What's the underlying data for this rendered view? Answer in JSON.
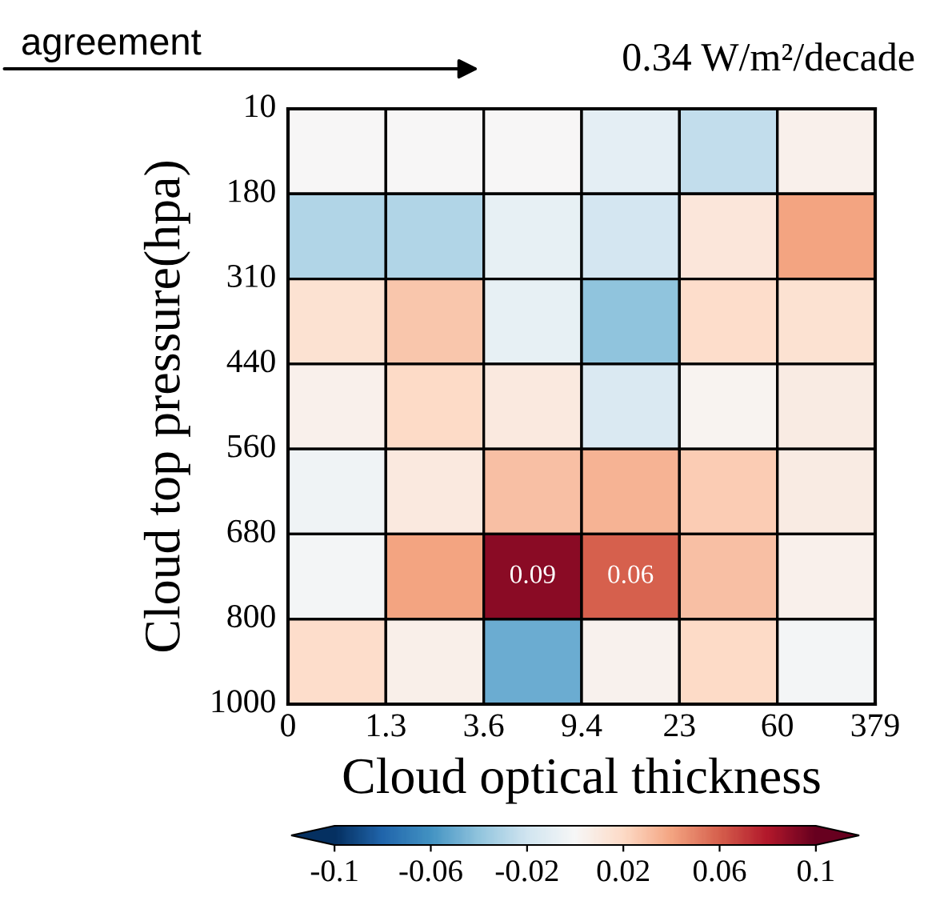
{
  "chart_data": {
    "type": "heatmap",
    "xlabel": "Cloud optical thickness",
    "ylabel": "Cloud top pressure(hpa)",
    "annotations": [
      "agreement",
      "0.34 W/m²/decade",
      "0",
      "1.3",
      "3.6",
      "9.4",
      "23",
      "60",
      "379",
      "10",
      "180",
      "310",
      "440",
      "560",
      "680",
      "800",
      "1000"
    ],
    "categories": [
      null,
      null,
      null,
      null,
      null,
      null
    ],
    "y_categories": [
      null,
      null,
      null,
      null,
      null,
      null,
      null
    ],
    "cells": [
      [
        0,
        0,
        0,
        -0.01,
        -0.025,
        0.005
      ],
      [
        -0.03,
        -0.03,
        -0.008,
        -0.018,
        0.012,
        0.04
      ],
      [
        0.015,
        0.028,
        -0.008,
        -0.04,
        0.018,
        0.015
      ],
      [
        0.005,
        0.02,
        0.01,
        -0.015,
        0.003,
        0.008
      ],
      [
        -0.004,
        0.01,
        0.03,
        0.035,
        0.025,
        0.008
      ],
      [
        -0.002,
        0.04,
        0.09,
        0.06,
        0.03,
        0.005
      ],
      [
        0.018,
        0.006,
        -0.05,
        0.004,
        0.02,
        -0.002
      ]
    ],
    "cell_labels": [
      [
        null,
        null,
        null,
        null,
        null,
        null
      ],
      [
        null,
        null,
        null,
        null,
        null,
        null
      ],
      [
        null,
        null,
        null,
        null,
        null,
        null
      ],
      [
        null,
        null,
        null,
        null,
        null,
        null
      ],
      [
        null,
        null,
        null,
        null,
        null,
        null
      ],
      [
        null,
        null,
        "0.09",
        "0.06",
        null,
        null
      ],
      [
        null,
        null,
        null,
        null,
        null,
        null
      ]
    ],
    "clim": [
      -0.1,
      0.1
    ],
    "cticks": [
      -0.1,
      -0.06,
      -0.02,
      0.02,
      0.06,
      0.1
    ],
    "grid": false
  }
}
